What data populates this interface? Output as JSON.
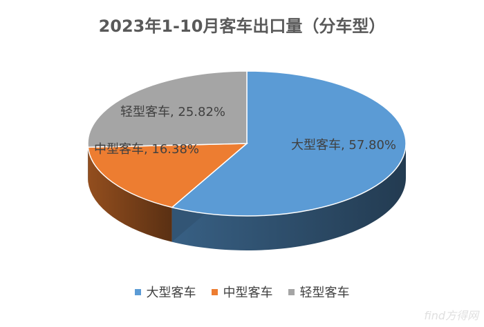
{
  "chart_data": {
    "type": "pie",
    "title": "2023年1-10月客车出口量（分车型）",
    "categories": [
      "大型客车",
      "中型客车",
      "轻型客车"
    ],
    "values": [
      57.8,
      16.38,
      25.82
    ],
    "data_labels": [
      "大型客车, 57.80%",
      "中型客车, 16.38%",
      "轻型客车, 25.82%"
    ],
    "colors": [
      "#5b9bd5",
      "#ed7d31",
      "#a5a5a5"
    ],
    "legend_position": "bottom"
  },
  "watermark": {
    "text": "find方得网"
  }
}
